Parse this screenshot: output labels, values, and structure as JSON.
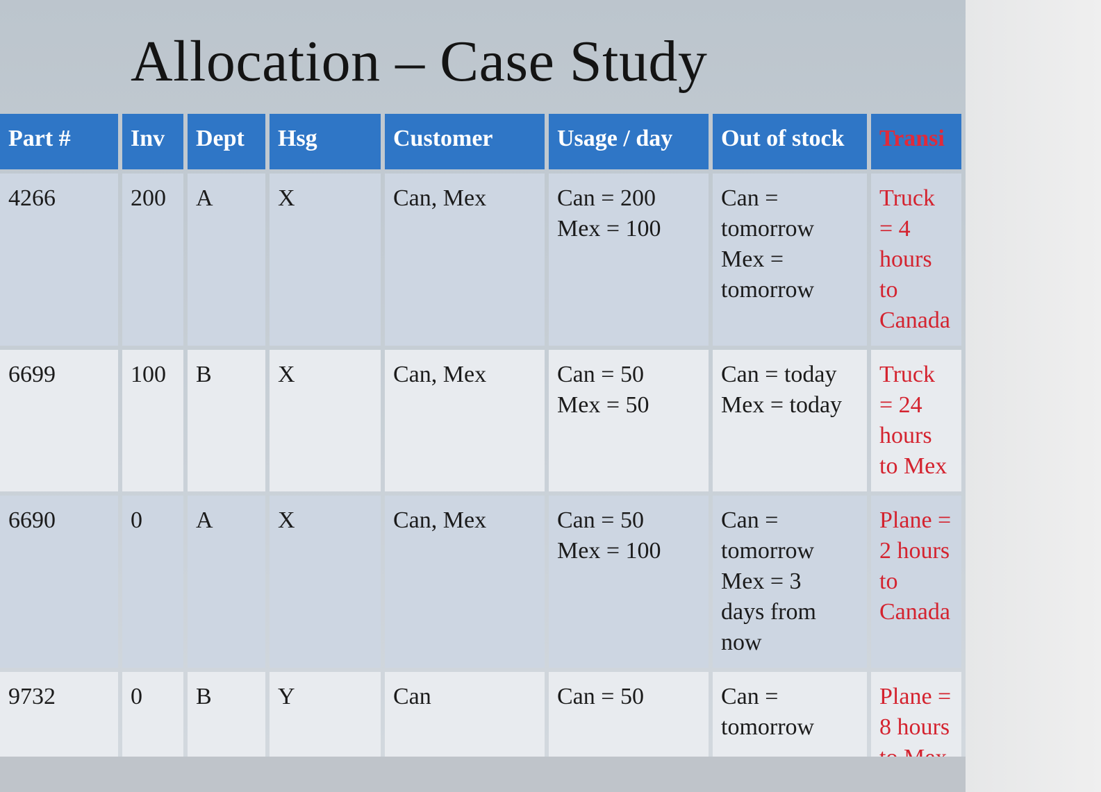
{
  "slide": {
    "title": "Allocation – Case Study"
  },
  "table": {
    "headers": {
      "part": "Part #",
      "inv": "Inv",
      "dept": "Dept",
      "hsg": "Hsg",
      "customer": "Customer",
      "usage": "Usage / day",
      "out_of_stock_1": "Out of",
      "out_of_stock_2": "stock",
      "transit": "Transi"
    },
    "rows": [
      {
        "part": "4266",
        "inv": "200",
        "dept": "A",
        "hsg": "X",
        "customer": "Can, Mex",
        "usage": [
          "Can = 200",
          "Mex = 100"
        ],
        "out_of_stock": [
          "Can =",
          "tomorrow",
          "Mex =",
          "tomorrow"
        ],
        "transit": [
          "Truck",
          "= 4",
          "hours",
          "to",
          "Canada"
        ]
      },
      {
        "part": "6699",
        "inv": "100",
        "dept": "B",
        "hsg": "X",
        "customer": "Can, Mex",
        "usage": [
          "Can = 50",
          "Mex = 50"
        ],
        "out_of_stock": [
          "Can = today",
          "Mex = today"
        ],
        "transit": [
          "Truck",
          "= 24",
          "hours",
          "to Mex"
        ]
      },
      {
        "part": "6690",
        "inv": "0",
        "dept": "A",
        "hsg": "X",
        "customer": "Can, Mex",
        "usage": [
          "Can = 50",
          "Mex = 100"
        ],
        "out_of_stock": [
          "Can =",
          "tomorrow",
          "Mex = 3",
          "days from",
          "now"
        ],
        "transit": [
          "Plane =",
          "2 hours",
          "to",
          "Canada"
        ]
      },
      {
        "part": "9732",
        "inv": "0",
        "dept": "B",
        "hsg": "Y",
        "customer": "Can",
        "usage": [
          "Can = 50"
        ],
        "out_of_stock": [
          "Can =",
          "tomorrow"
        ],
        "transit": [
          "Plane =",
          "8 hours",
          "to Mex"
        ]
      }
    ]
  },
  "colors": {
    "header_bg": "#2f76c6",
    "header_text": "#ffffff",
    "row_odd_bg": "#cdd6e2",
    "row_even_bg": "#e8ebef",
    "transit_text": "#d4232f"
  }
}
